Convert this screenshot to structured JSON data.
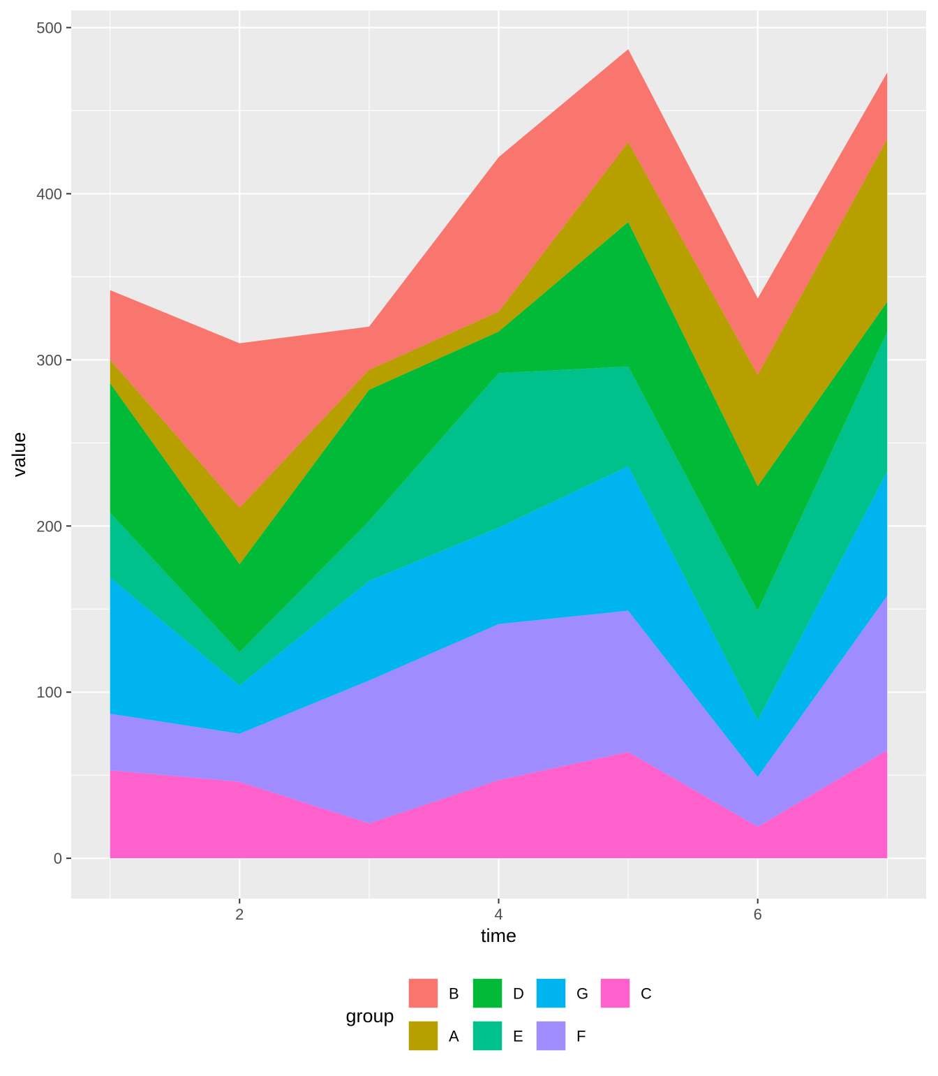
{
  "chart_data": {
    "type": "area",
    "stacked": true,
    "title": "",
    "xlabel": "time",
    "ylabel": "value",
    "x": [
      1,
      2,
      3,
      4,
      5,
      6,
      7
    ],
    "xlim": [
      0.7,
      7.3
    ],
    "ylim": [
      -24.3,
      510.3
    ],
    "x_ticks": [
      2,
      4,
      6
    ],
    "y_ticks": [
      0,
      100,
      200,
      300,
      400,
      500
    ],
    "grid": true,
    "legend_position": "bottom",
    "legend_title": "group",
    "stack_order": [
      "C",
      "F",
      "G",
      "E",
      "D",
      "A",
      "B"
    ],
    "series": [
      {
        "name": "B",
        "color": "#F8766D",
        "values": [
          42,
          99,
          26,
          93,
          56,
          46,
          40
        ]
      },
      {
        "name": "A",
        "color": "#B79F00",
        "values": [
          14,
          34,
          12,
          12,
          48,
          67,
          98
        ]
      },
      {
        "name": "D",
        "color": "#00BA38",
        "values": [
          78,
          53,
          79,
          25,
          87,
          75,
          18
        ]
      },
      {
        "name": "E",
        "color": "#00C08B",
        "values": [
          39,
          20,
          36,
          93,
          60,
          66,
          84
        ]
      },
      {
        "name": "G",
        "color": "#00B4EF",
        "values": [
          82,
          29,
          60,
          58,
          87,
          34,
          75
        ]
      },
      {
        "name": "F",
        "color": "#9F8CFF",
        "values": [
          34,
          29,
          86,
          94,
          85,
          30,
          93
        ]
      },
      {
        "name": "C",
        "color": "#FF61CC",
        "values": [
          53,
          46,
          21,
          47,
          64,
          19,
          65
        ]
      }
    ],
    "legend_layout": [
      [
        "B",
        "D",
        "G",
        "C"
      ],
      [
        "A",
        "E",
        "F"
      ]
    ]
  }
}
